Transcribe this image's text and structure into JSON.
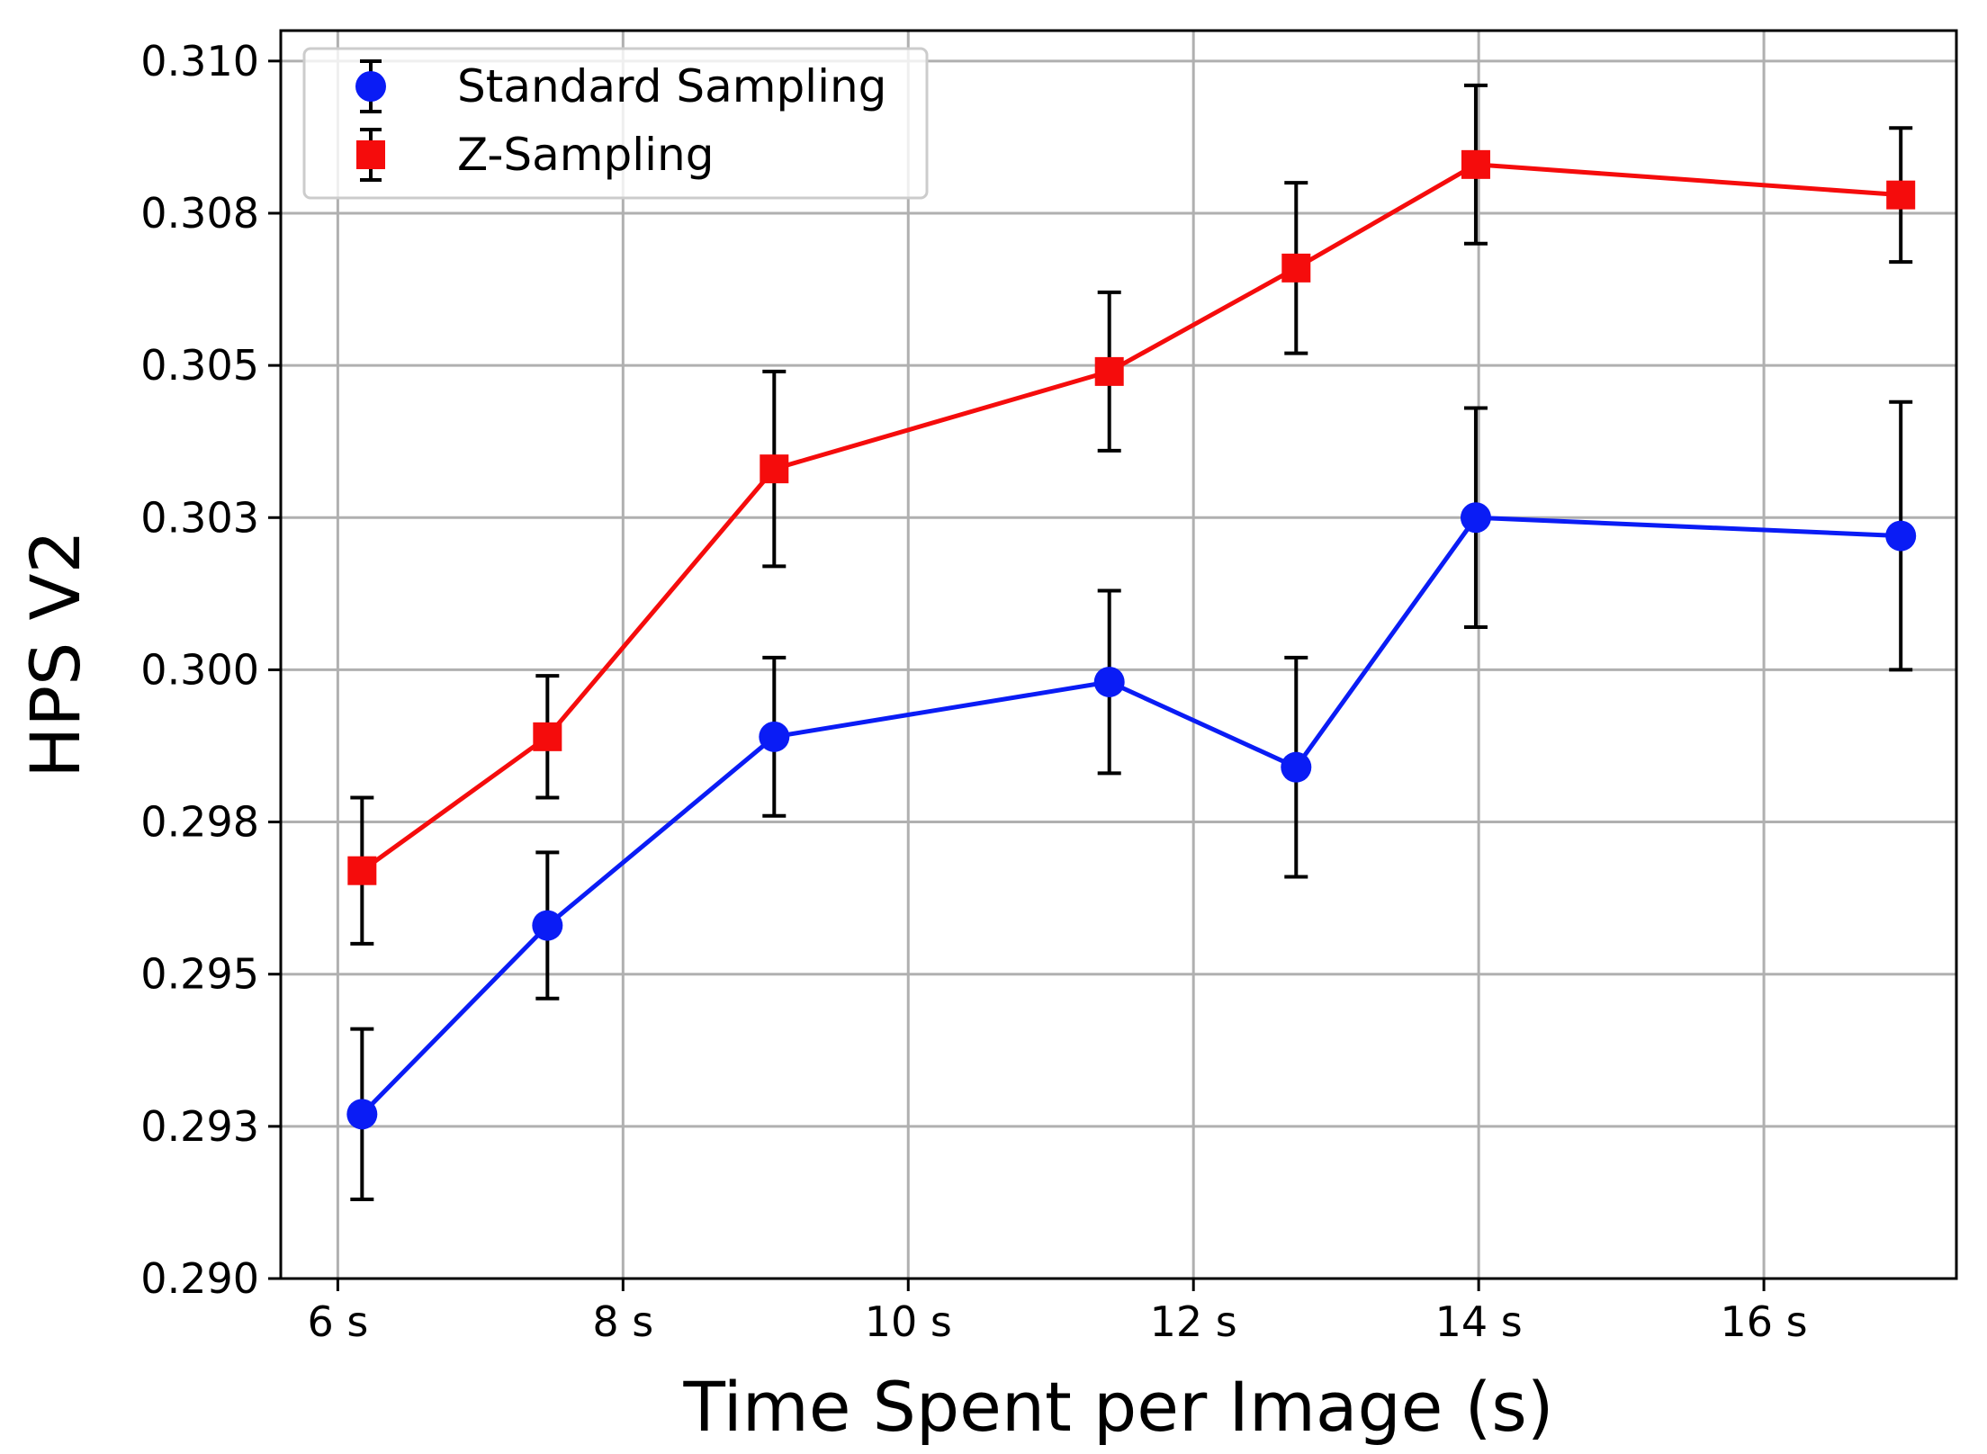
{
  "chart_data": {
    "type": "line",
    "xlabel": "Time Spent per Image (s)",
    "ylabel": "HPS V2",
    "xlim": [
      5.6,
      17.35
    ],
    "ylim": [
      0.29,
      0.3105
    ],
    "x_ticks": [
      6,
      8,
      10,
      12,
      14,
      16
    ],
    "x_tick_labels": [
      "6 s",
      "8 s",
      "10 s",
      "12 s",
      "14 s",
      "16 s"
    ],
    "y_ticks": [
      0.29,
      0.2925,
      0.295,
      0.2975,
      0.3,
      0.3025,
      0.305,
      0.3075,
      0.31
    ],
    "y_tick_labels": [
      "0.290",
      "0.293",
      "0.295",
      "0.298",
      "0.300",
      "0.303",
      "0.305",
      "0.308",
      "0.310"
    ],
    "grid": true,
    "legend_position": "top-left",
    "series": [
      {
        "name": "Standard Sampling",
        "color": "#0a1cf5",
        "marker": "circle",
        "x": [
          6.17,
          7.47,
          9.06,
          11.41,
          12.72,
          13.98,
          16.96
        ],
        "y": [
          0.2927,
          0.2958,
          0.2989,
          0.2998,
          0.2984,
          0.3025,
          0.3022
        ],
        "err": [
          0.0014,
          0.0012,
          0.0013,
          0.0015,
          0.0018,
          0.0018,
          0.0022
        ]
      },
      {
        "name": "Z-Sampling",
        "color": "#f50c0c",
        "marker": "square",
        "x": [
          6.17,
          7.47,
          9.06,
          11.41,
          12.72,
          13.98,
          16.96
        ],
        "y": [
          0.2967,
          0.2989,
          0.3033,
          0.3049,
          0.3066,
          0.3083,
          0.3078
        ],
        "err": [
          0.0012,
          0.001,
          0.0016,
          0.0013,
          0.0014,
          0.0013,
          0.0011
        ]
      }
    ]
  }
}
